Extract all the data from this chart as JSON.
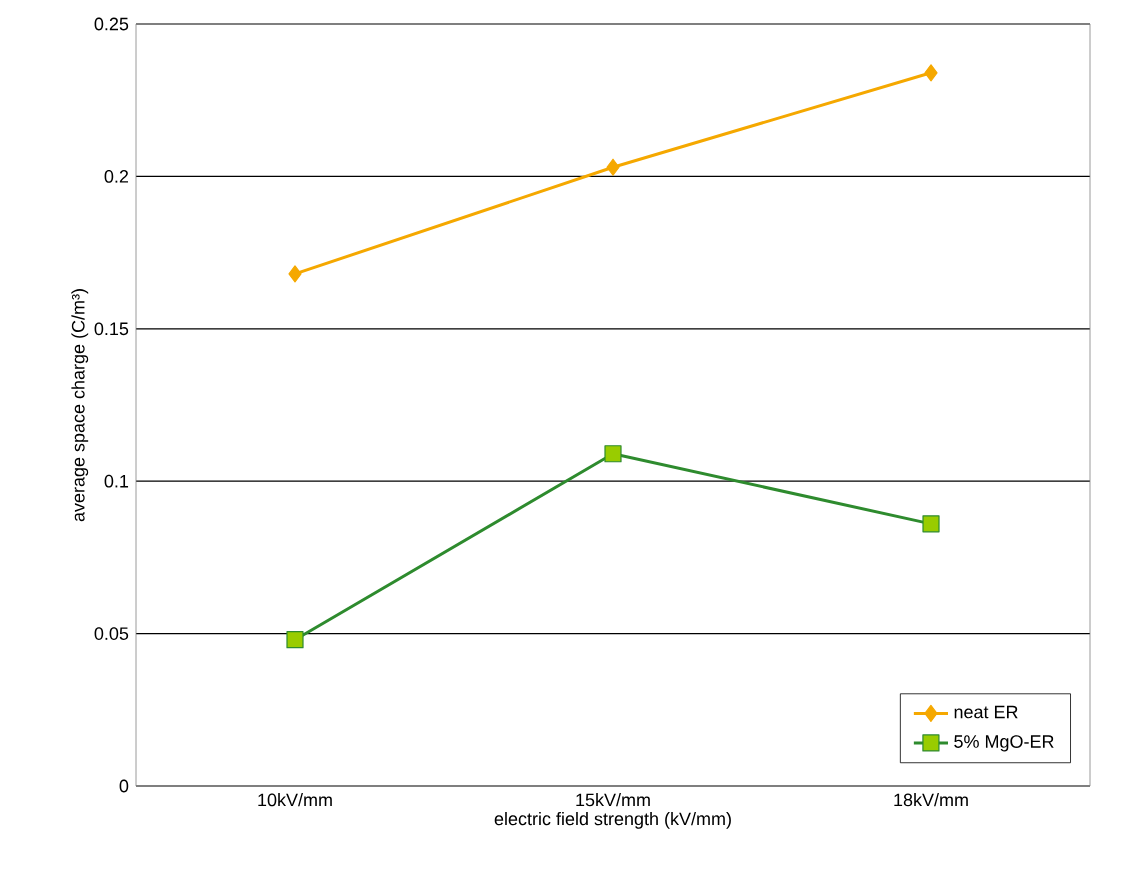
{
  "chart_data": {
    "type": "line",
    "xlabel": "electric field strength (kV/mm)",
    "ylabel": "average space charge (C/m³)",
    "categories": [
      "10kV/mm",
      "15kV/mm",
      "18kV/mm"
    ],
    "series": [
      {
        "name": "neat ER",
        "color": "#f5a800",
        "marker": "diamond",
        "values": [
          0.168,
          0.203,
          0.234
        ]
      },
      {
        "name": "5% MgO-ER",
        "color": "#2e8b2e",
        "marker": "square",
        "values": [
          0.048,
          0.109,
          0.086
        ]
      }
    ],
    "ylim": [
      0,
      0.25
    ],
    "yticks": [
      0,
      0.05,
      0.1,
      0.15,
      0.2,
      0.25
    ],
    "grid": "y",
    "legend": "bottom right"
  }
}
